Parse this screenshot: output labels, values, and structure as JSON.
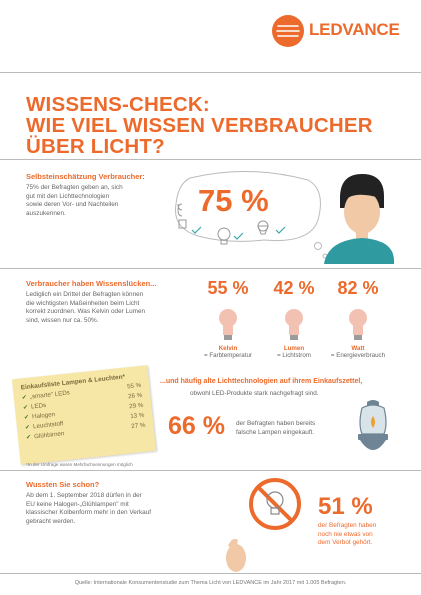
{
  "brand": {
    "name": "LEDVANCE",
    "accent": "#ec6a2c"
  },
  "title": {
    "line1": "WISSENS-CHECK:",
    "line2": "WIE VIEL WISSEN VERBRAUCHER",
    "line3": "ÜBER LICHT?"
  },
  "section1": {
    "heading": "Selbsteinschätzung Verbraucher:",
    "text_lines": [
      "75% der Befragten geben an, sich",
      "gut mit den Lichttechnologien",
      "sowie deren Vor- und Nachteilen",
      "auszukennen."
    ],
    "percent": "75 %"
  },
  "section2": {
    "heading": "Verbraucher haben Wissenslücken...",
    "text_lines": [
      "Lediglich ein Drittel der Befragten können",
      "die wichtigsten Maßeinheiten beim Licht",
      "korrekt zuordnen. Was Kelvin oder Lumen",
      "sind, wissen nur ca. 50%."
    ],
    "items": [
      {
        "percent": "55 %",
        "unit": "Kelvin",
        "meaning": "= Farbtemperatur"
      },
      {
        "percent": "42 %",
        "unit": "Lumen",
        "meaning": "= Lichtstrom"
      },
      {
        "percent": "82 %",
        "unit": "Watt",
        "meaning": "= Energieverbrauch"
      }
    ]
  },
  "section3": {
    "note_title": "Einkaufsliste Lampen & Leuchten*",
    "list": [
      {
        "label": "„smarte\" LEDs",
        "value": "55 %"
      },
      {
        "label": "LEDs",
        "value": "26 %"
      },
      {
        "label": "Halogen",
        "value": "29 %"
      },
      {
        "label": "Leuchtstoff",
        "value": "13 %"
      },
      {
        "label": "Glühbirnen",
        "value": "27 %"
      }
    ],
    "footnote": "*In der Umfrage waren Mehrfachnennungen möglich",
    "heading": "...und häufig alte Lichttechnologien auf ihrem Einkaufszettel,",
    "subheading": "obwohl LED-Produkte stark nachgefragt sind.",
    "percent": "66 %",
    "text_lines": [
      "der Befragten haben bereits",
      "falsche Lampen eingekauft."
    ]
  },
  "section4": {
    "heading": "Wussten Sie schon?",
    "text_lines": [
      "Ab dem 1. September 2018 dürfen in der",
      "EU keine Halogen-„Glühlampen\" mit",
      "klassischer Kolbenform mehr in den Verkauf",
      "gebracht werden."
    ],
    "percent": "51 %",
    "percent_text": [
      "der Befragten haben",
      "noch nie etwas von",
      "dem Verbot gehört."
    ]
  },
  "source": "Quelle: Internationale Konsumentenstudie zum Thema Licht von LEDVANCE im Jahr 2017 mit 1.005 Befragten."
}
